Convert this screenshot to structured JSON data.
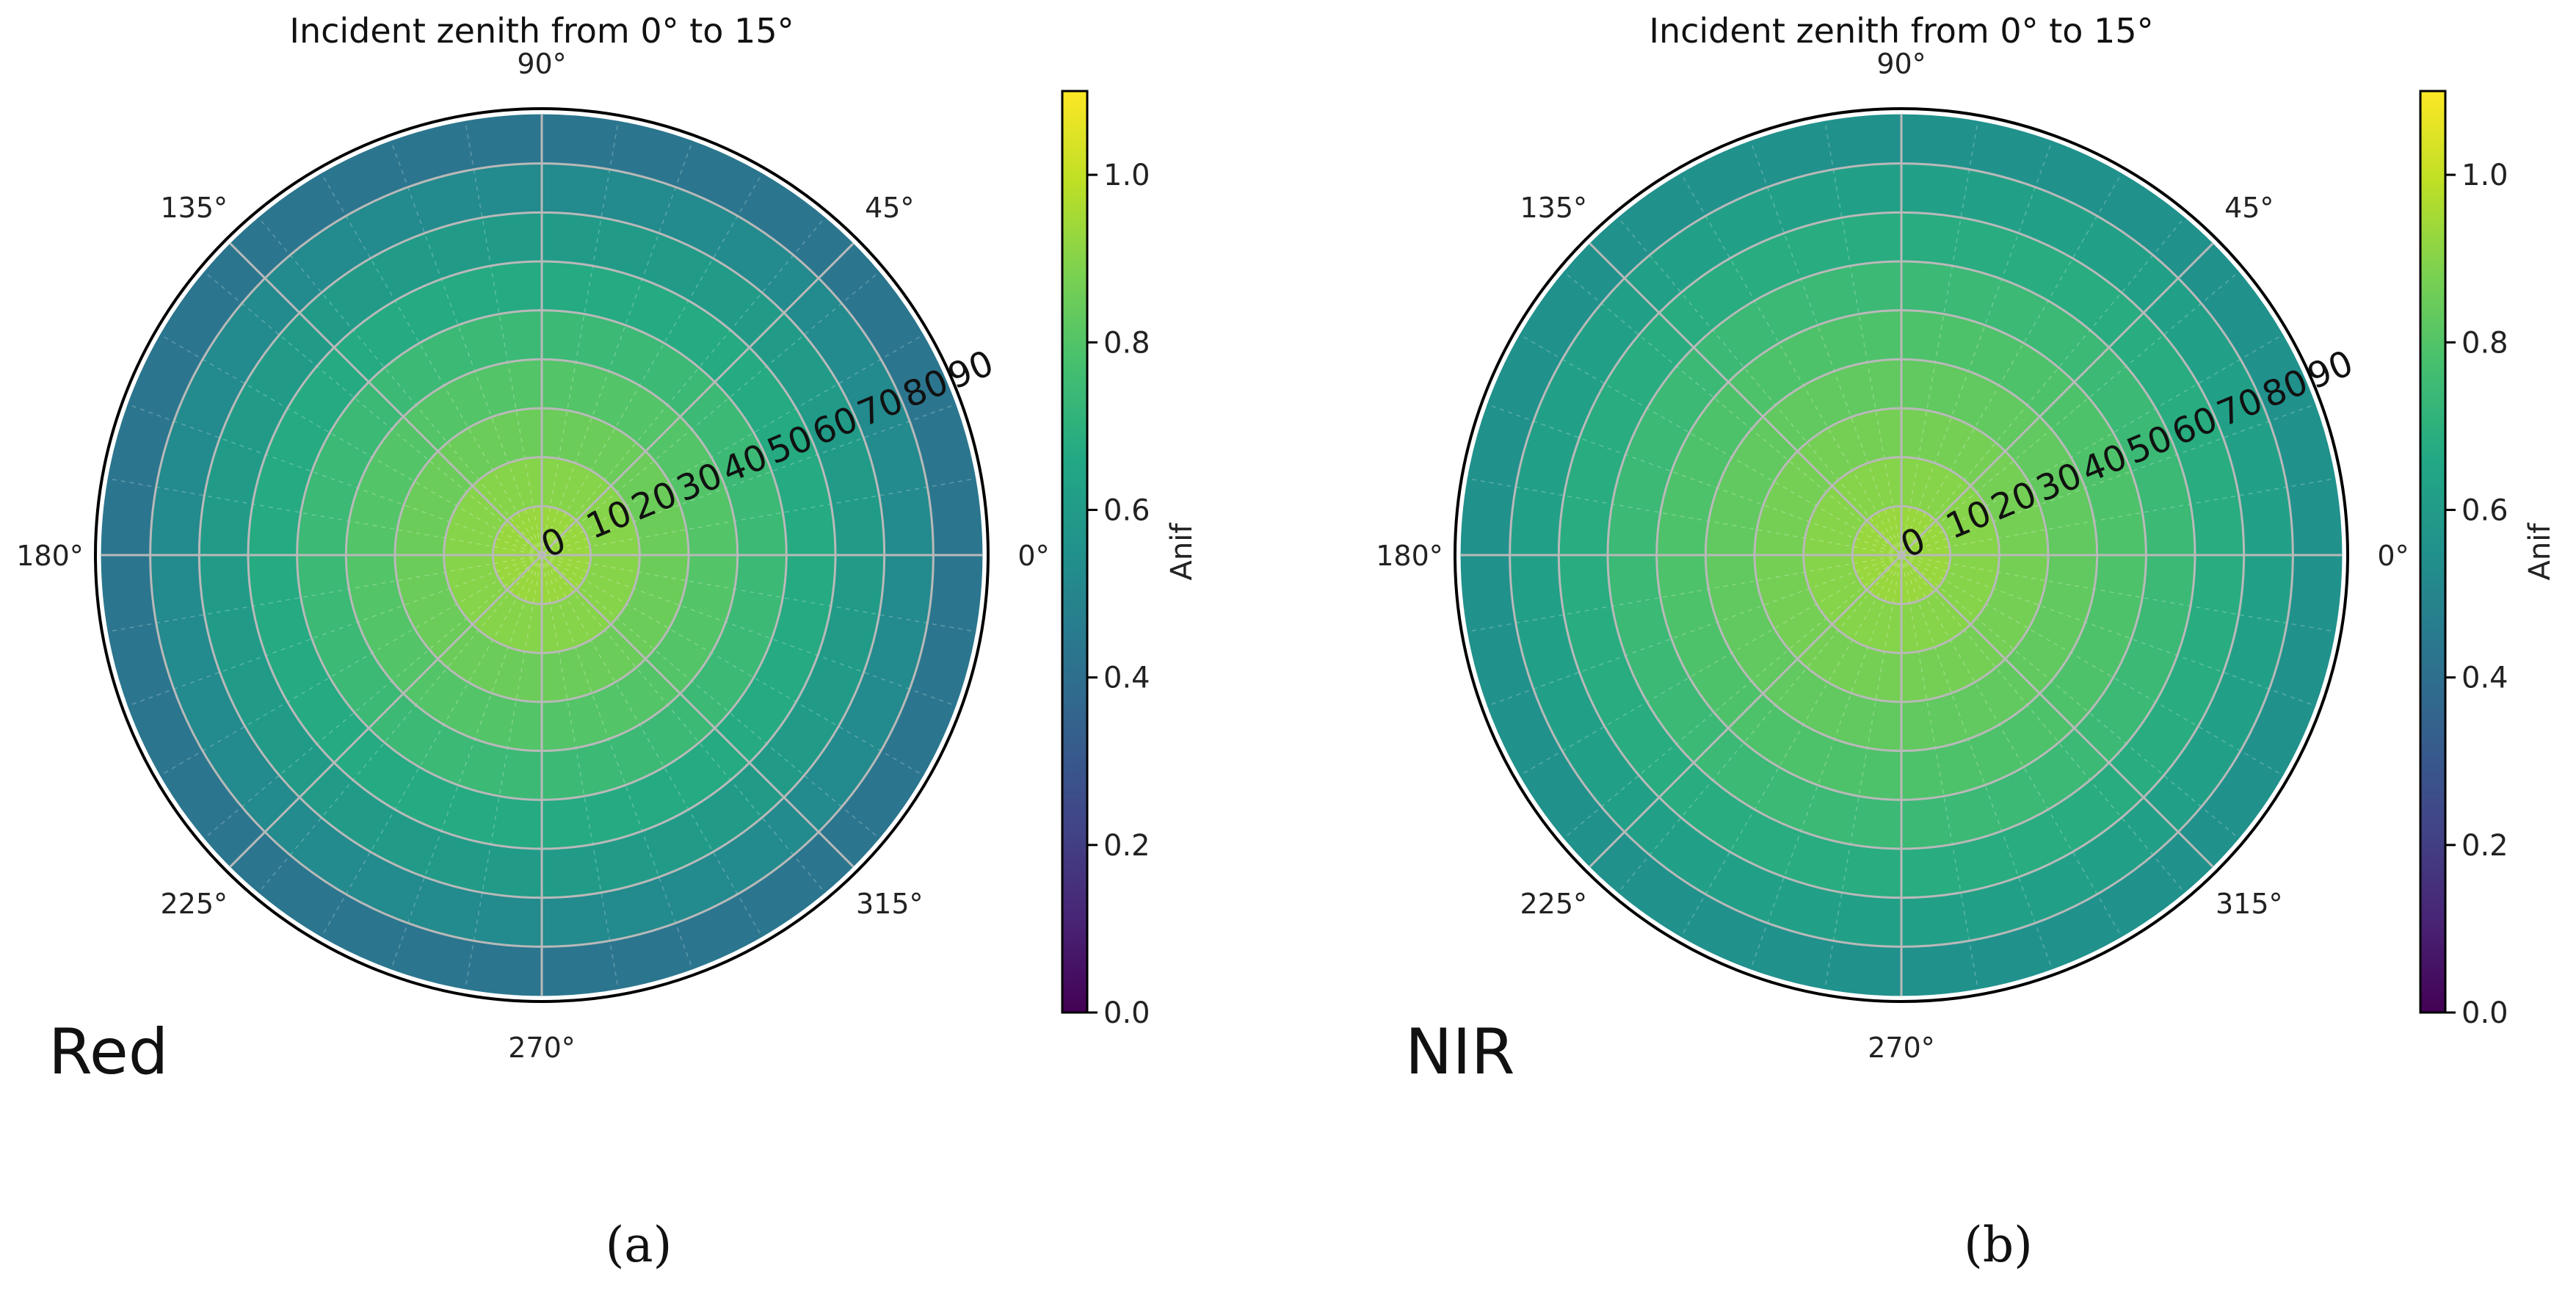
{
  "chart_data": [
    {
      "type": "heatmap",
      "projection": "polar",
      "title": "Incident zenith from 0° to 15°",
      "band_label": "Red",
      "panel_caption": "(a)",
      "angular_ticks": [
        "0°",
        "45°",
        "90°",
        "135°",
        "180°",
        "225°",
        "270°",
        "315°"
      ],
      "angular_tick_values": [
        0,
        45,
        90,
        135,
        180,
        225,
        270,
        315
      ],
      "radial_ticks": [
        "0",
        "10",
        "20",
        "30",
        "40",
        "50",
        "60",
        "70",
        "80",
        "90"
      ],
      "radial_tick_values": [
        0,
        10,
        20,
        30,
        40,
        50,
        60,
        70,
        80,
        90
      ],
      "rlim": [
        0,
        90
      ],
      "radial_bins": [
        0,
        10,
        20,
        30,
        40,
        50,
        60,
        70,
        80,
        90
      ],
      "azimuth_bin_count": 36,
      "ring_values": [
        0.93,
        0.9,
        0.85,
        0.8,
        0.74,
        0.67,
        0.6,
        0.52,
        0.43
      ],
      "colorbar": {
        "label": "Anif",
        "range": [
          0.0,
          1.1
        ],
        "ticks": [
          "0.0",
          "0.2",
          "0.4",
          "0.6",
          "0.8",
          "1.0"
        ],
        "tick_values": [
          0.0,
          0.2,
          0.4,
          0.6,
          0.8,
          1.0
        ],
        "colormap": "viridis"
      }
    },
    {
      "type": "heatmap",
      "projection": "polar",
      "title": "Incident zenith from 0° to 15°",
      "band_label": "NIR",
      "panel_caption": "(b)",
      "angular_ticks": [
        "0°",
        "45°",
        "90°",
        "135°",
        "180°",
        "225°",
        "270°",
        "315°"
      ],
      "angular_tick_values": [
        0,
        45,
        90,
        135,
        180,
        225,
        270,
        315
      ],
      "radial_ticks": [
        "0",
        "10",
        "20",
        "30",
        "40",
        "50",
        "60",
        "70",
        "80",
        "90"
      ],
      "radial_tick_values": [
        0,
        10,
        20,
        30,
        40,
        50,
        60,
        70,
        80,
        90
      ],
      "rlim": [
        0,
        90
      ],
      "radial_bins": [
        0,
        10,
        20,
        30,
        40,
        50,
        60,
        70,
        80,
        90
      ],
      "azimuth_bin_count": 36,
      "ring_values": [
        0.93,
        0.9,
        0.87,
        0.83,
        0.79,
        0.74,
        0.68,
        0.62,
        0.55
      ],
      "colorbar": {
        "label": "Anif",
        "range": [
          0.0,
          1.1
        ],
        "ticks": [
          "0.0",
          "0.2",
          "0.4",
          "0.6",
          "0.8",
          "1.0"
        ],
        "tick_values": [
          0.0,
          0.2,
          0.4,
          0.6,
          0.8,
          1.0
        ],
        "colormap": "viridis"
      }
    }
  ]
}
